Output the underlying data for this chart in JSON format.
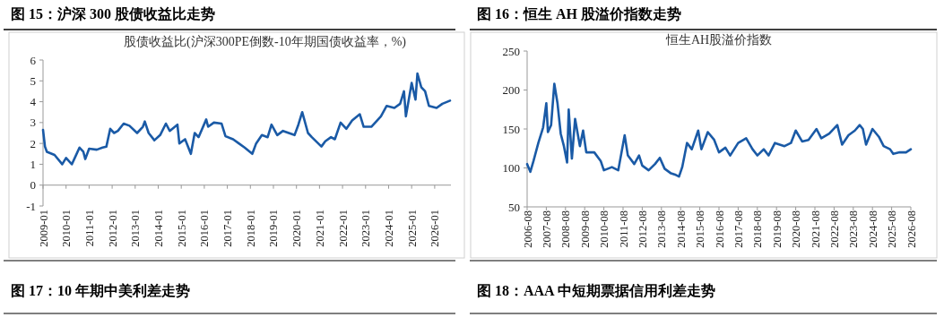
{
  "chart_data": [
    {
      "type": "line",
      "title": "图 15：沪深 300 股债收益比走势",
      "subtitle": "股债收益比(沪深300PE倒数-10年期国债收益率，%)",
      "annotations": [
        "图 17：10 年期中美利差走势"
      ],
      "x": [
        "2009-01",
        "2009-02",
        "2009-03",
        "2009-07",
        "2009-11",
        "2010-01",
        "2010-04",
        "2010-06",
        "2010-08",
        "2010-10",
        "2010-11",
        "2011-01",
        "2011-05",
        "2011-08",
        "2011-10",
        "2011-12",
        "2012-02",
        "2012-04",
        "2012-07",
        "2012-10",
        "2013-02",
        "2013-05",
        "2013-06",
        "2013-08",
        "2013-11",
        "2014-02",
        "2014-05",
        "2014-07",
        "2014-11",
        "2014-12",
        "2015-03",
        "2015-06",
        "2015-08",
        "2015-10",
        "2016-02",
        "2016-03",
        "2016-06",
        "2016-10",
        "2016-12",
        "2017-04",
        "2017-07",
        "2017-10",
        "2018-02",
        "2018-04",
        "2018-07",
        "2018-10",
        "2018-12",
        "2019-03",
        "2019-06",
        "2019-09",
        "2019-12",
        "2020-02",
        "2020-04",
        "2020-07",
        "2020-09",
        "2021-02",
        "2021-04",
        "2021-07",
        "2021-09",
        "2021-12",
        "2022-03",
        "2022-06",
        "2022-10",
        "2022-12",
        "2023-04",
        "2023-07",
        "2023-09",
        "2023-12",
        "2024-04",
        "2024-07",
        "2024-09",
        "2024-10",
        "2025-01",
        "2025-03",
        "2025-04",
        "2025-06",
        "2025-08",
        "2025-10",
        "2026-02",
        "2026-05",
        "2026-09"
      ],
      "values": [
        2.65,
        1.85,
        1.6,
        1.45,
        1.0,
        1.3,
        1.0,
        1.4,
        1.8,
        1.6,
        1.25,
        1.75,
        1.7,
        1.8,
        1.85,
        2.7,
        2.5,
        2.6,
        2.95,
        2.85,
        2.5,
        2.8,
        3.05,
        2.5,
        2.15,
        2.4,
        2.95,
        2.6,
        2.9,
        2.0,
        2.2,
        1.5,
        2.5,
        2.3,
        3.15,
        2.8,
        3.0,
        2.95,
        2.35,
        2.2,
        2.0,
        1.8,
        1.5,
        2.0,
        2.4,
        2.3,
        2.9,
        2.4,
        2.6,
        2.5,
        2.4,
        2.9,
        3.5,
        2.5,
        2.3,
        1.85,
        2.1,
        2.3,
        2.2,
        3.0,
        2.7,
        3.1,
        3.4,
        2.8,
        2.8,
        3.1,
        3.3,
        3.8,
        3.7,
        3.9,
        4.5,
        3.3,
        4.9,
        4.1,
        5.35,
        4.7,
        4.5,
        3.8,
        3.7,
        3.9,
        4.05
      ],
      "color": "#1a5aa6",
      "xlim": [
        "2009-01",
        "2026-09-15"
      ],
      "ylim": [
        -1,
        6
      ],
      "yticks": [
        -1,
        0,
        1,
        2,
        3,
        4,
        5,
        6
      ],
      "xticks": [
        "2009-01",
        "2010-01",
        "2011-01",
        "2012-01",
        "2013-01",
        "2014-01",
        "2015-01",
        "2016-01",
        "2017-01",
        "2018-01",
        "2019-01",
        "2020-01",
        "2021-01",
        "2022-01",
        "2023-01",
        "2024-01",
        "2025-01",
        "2026-01"
      ]
    },
    {
      "type": "line",
      "title": "图 16：恒生 AH 股溢价指数走势",
      "subtitle": "恒生AH股溢价指数",
      "annotations": [
        "图 18：AAA 中短期票据信用利差走势"
      ],
      "x": [
        "2006-08",
        "2006-10",
        "2006-12",
        "2007-03",
        "2007-06",
        "2007-08",
        "2007-09",
        "2007-11",
        "2008-01",
        "2008-03",
        "2008-05",
        "2008-07",
        "2008-09",
        "2008-10",
        "2008-12",
        "2009-02",
        "2009-05",
        "2009-07",
        "2009-09",
        "2010-02",
        "2010-06",
        "2010-08",
        "2011-01",
        "2011-05",
        "2011-09",
        "2011-11",
        "2012-03",
        "2012-06",
        "2012-08",
        "2012-12",
        "2013-04",
        "2013-07",
        "2013-10",
        "2014-02",
        "2014-05",
        "2014-07",
        "2014-09",
        "2014-12",
        "2015-03",
        "2015-07",
        "2015-09",
        "2016-01",
        "2016-05",
        "2016-08",
        "2016-12",
        "2017-03",
        "2017-08",
        "2018-01",
        "2018-05",
        "2018-08",
        "2018-12",
        "2019-03",
        "2019-07",
        "2020-01",
        "2020-05",
        "2020-08",
        "2020-12",
        "2021-04",
        "2021-09",
        "2021-12",
        "2022-05",
        "2022-10",
        "2023-01",
        "2023-05",
        "2023-09",
        "2023-12",
        "2024-02",
        "2024-04",
        "2024-08",
        "2024-12",
        "2025-03",
        "2025-07",
        "2025-09",
        "2026-01",
        "2026-05",
        "2026-08"
      ],
      "values": [
        105,
        95,
        109,
        132,
        152,
        183,
        146,
        155,
        208,
        183,
        144,
        128,
        107,
        175,
        112,
        163,
        128,
        148,
        120,
        120,
        109,
        97,
        101,
        97,
        142,
        116,
        105,
        116,
        103,
        97,
        105,
        113,
        99,
        93,
        91,
        89,
        101,
        132,
        124,
        148,
        124,
        146,
        136,
        120,
        126,
        116,
        132,
        138,
        124,
        116,
        124,
        116,
        132,
        128,
        132,
        148,
        134,
        136,
        150,
        138,
        144,
        155,
        130,
        142,
        148,
        155,
        150,
        130,
        150,
        140,
        128,
        124,
        118,
        120,
        120,
        124
      ],
      "color": "#1a5aa6",
      "xlim": [
        "2006-08",
        "2026-08"
      ],
      "ylim": [
        50,
        250
      ],
      "yticks": [
        50,
        100,
        150,
        200,
        250
      ],
      "xticks": [
        "2006-08",
        "2007-08",
        "2008-08",
        "2009-08",
        "2010-08",
        "2011-08",
        "2012-08",
        "2013-08",
        "2014-08",
        "2015-08",
        "2016-08",
        "2017-08",
        "2018-08",
        "2019-08",
        "2020-08",
        "2021-08",
        "2022-08",
        "2023-08",
        "2024-08",
        "2025-08",
        "2026-08"
      ]
    }
  ]
}
